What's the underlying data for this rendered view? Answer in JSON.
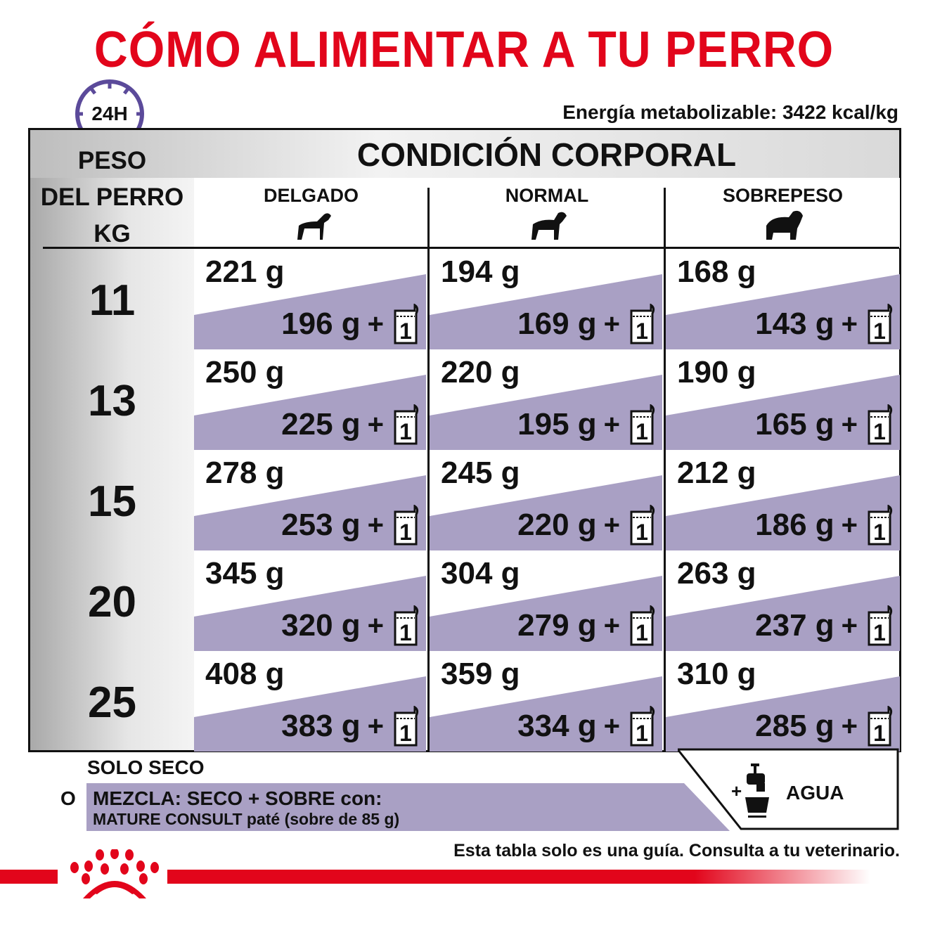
{
  "title": "CÓMO ALIMENTAR A TU PERRO",
  "clock_label": "24H",
  "energy": "Energía metabolizable: 3422 kcal/kg",
  "header": {
    "weight_label_lines": [
      "PESO",
      "DEL PERRO",
      "KG"
    ],
    "condition_title": "CONDICIÓN CORPORAL",
    "columns": [
      "DELGADO",
      "NORMAL",
      "SOBREPESO"
    ]
  },
  "rows": [
    {
      "weight": "11",
      "cells": [
        {
          "dry": "221 g",
          "mix": "196 g"
        },
        {
          "dry": "194 g",
          "mix": "169 g"
        },
        {
          "dry": "168 g",
          "mix": "143 g"
        }
      ]
    },
    {
      "weight": "13",
      "cells": [
        {
          "dry": "250 g",
          "mix": "225 g"
        },
        {
          "dry": "220 g",
          "mix": "195 g"
        },
        {
          "dry": "190 g",
          "mix": "165 g"
        }
      ]
    },
    {
      "weight": "15",
      "cells": [
        {
          "dry": "278 g",
          "mix": "253 g"
        },
        {
          "dry": "245 g",
          "mix": "220 g"
        },
        {
          "dry": "212 g",
          "mix": "186 g"
        }
      ]
    },
    {
      "weight": "20",
      "cells": [
        {
          "dry": "345 g",
          "mix": "320 g"
        },
        {
          "dry": "304 g",
          "mix": "279 g"
        },
        {
          "dry": "263 g",
          "mix": "237 g"
        }
      ]
    },
    {
      "weight": "25",
      "cells": [
        {
          "dry": "408 g",
          "mix": "383 g"
        },
        {
          "dry": "359 g",
          "mix": "334 g"
        },
        {
          "dry": "310 g",
          "mix": "285 g"
        }
      ]
    }
  ],
  "plus": "+",
  "pouch_count": "1",
  "legend": {
    "solo_seco": "SOLO SECO",
    "or": "O",
    "mix_line1": "MEZCLA: SECO + SOBRE con:",
    "mix_line2": "MATURE CONSULT paté (sobre de 85 g)",
    "water_plus": "+",
    "water": "AGUA"
  },
  "note": "Esta tabla solo es una guía. Consulta a tu veterinario.",
  "colors": {
    "brand_red": "#e2051b",
    "purple": "#a9a0c4",
    "clock_purple": "#5b4a9a"
  }
}
